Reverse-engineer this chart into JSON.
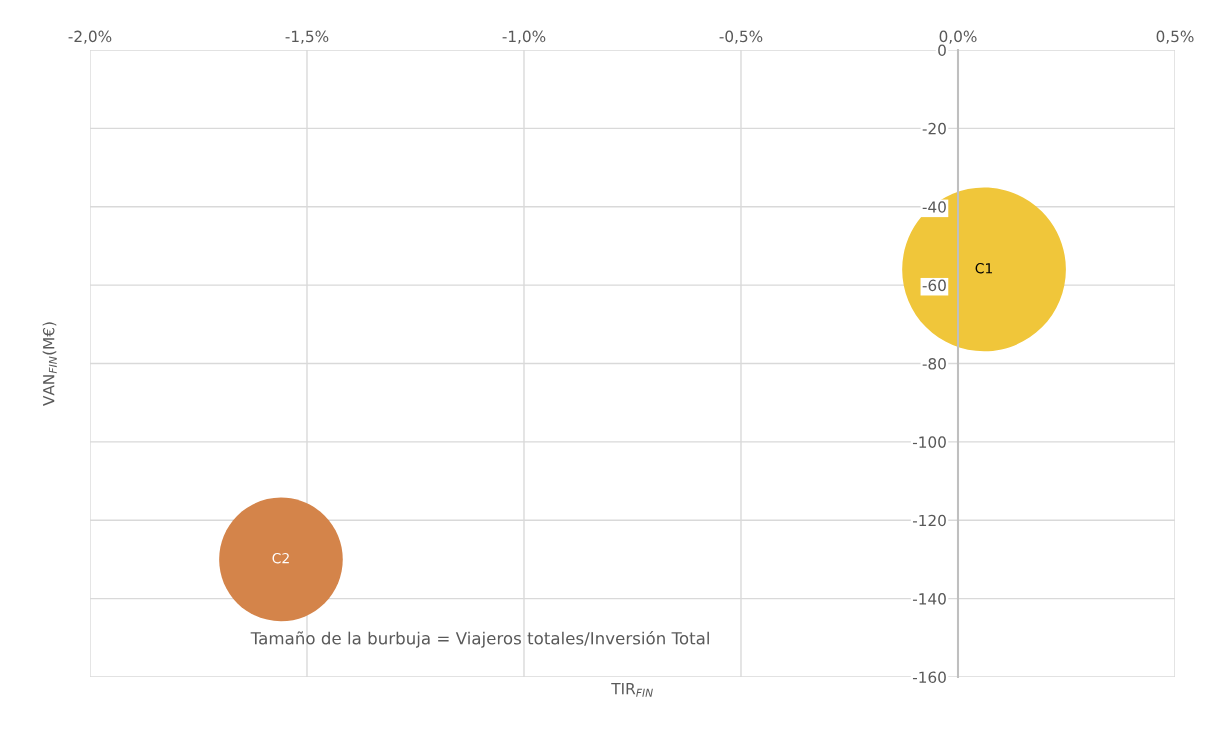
{
  "chart_data": {
    "type": "bubble",
    "xlabel": "TIR$_{FIN}$",
    "ylabel": "VAN$_{FIN}$(M€)",
    "series": [
      {
        "name": "C1",
        "color": "#f0c63a",
        "x": [
          0.06
        ],
        "values": [
          -56
        ],
        "sizes": [
          1
        ]
      },
      {
        "name": "C2",
        "color": "#d4844a",
        "x": [
          -1.56
        ],
        "values": [
          -130
        ],
        "sizes": [
          0.57
        ]
      }
    ],
    "xlim": [
      -2.0,
      0.5
    ],
    "xticks": [
      {
        "value": -2.0,
        "label": "-2,0%"
      },
      {
        "value": -1.5,
        "label": "-1,5%"
      },
      {
        "value": -1.0,
        "label": "-1,0%"
      },
      {
        "value": -0.5,
        "label": "-0,5%"
      },
      {
        "value": 0.0,
        "label": "0,0%"
      },
      {
        "value": 0.5,
        "label": "0,5%"
      }
    ],
    "ylim": [
      -160,
      0
    ],
    "yticks": [
      0,
      -20,
      -40,
      -60,
      -80,
      -100,
      -120,
      -140,
      -160
    ],
    "grid": true,
    "annotations": [
      "Tamaño de la burbuja = Viajeros totales/Inversión Total"
    ]
  }
}
